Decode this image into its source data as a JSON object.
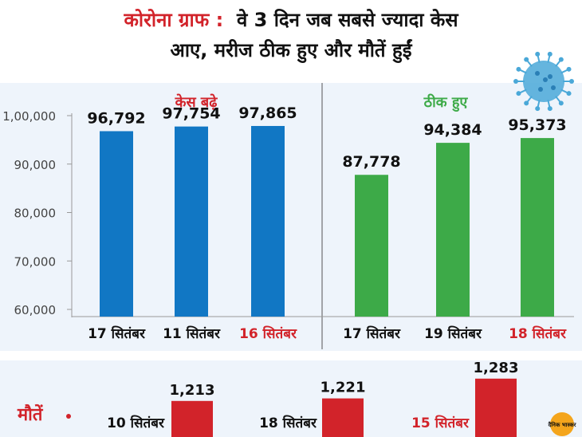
{
  "title": {
    "red_part": "कोरोना ग्राफ :",
    "line1_rest": "वे 3 दिन जब सबसे ज्यादा केस",
    "line2": "आए, मरीज ठीक हुए और मौतें हुईं"
  },
  "colors": {
    "cases_bar": "#1177c4",
    "recovered_bar": "#3daa48",
    "deaths_bar": "#d2232a",
    "highlight_text": "#d2232a",
    "panel_bg": "#eef4fb",
    "virus": "#4aa8d8"
  },
  "logo_text": "दैनिक भास्कर",
  "chart_data": [
    {
      "type": "bar",
      "title": "केस बढ़े",
      "categories": [
        "17 सितंबर",
        "11 सितंबर",
        "16 सितंबर"
      ],
      "values": [
        96792,
        97754,
        97865
      ],
      "value_labels": [
        "96,792",
        "97,754",
        "97,865"
      ],
      "highlight_category": "16 सितंबर",
      "ylim": [
        60000,
        100000
      ],
      "yticks": [
        "60,000",
        "70,000",
        "80,000",
        "90,000",
        "1,00,000"
      ],
      "grid": false
    },
    {
      "type": "bar",
      "title": "ठीक हुए",
      "categories": [
        "17 सितंबर",
        "19 सितंबर",
        "18 सितंबर"
      ],
      "values": [
        87778,
        94384,
        95373
      ],
      "value_labels": [
        "87,778",
        "94,384",
        "95,373"
      ],
      "highlight_category": "18 सितंबर",
      "ylim": [
        60000,
        100000
      ]
    },
    {
      "type": "bar",
      "title": "मौतें",
      "categories": [
        "10 सितंबर",
        "18 सितंबर",
        "15 सितंबर"
      ],
      "values": [
        1213,
        1221,
        1283
      ],
      "value_labels": [
        "1,213",
        "1,221",
        "1,283"
      ],
      "highlight_category": "15 सितंबर"
    }
  ]
}
